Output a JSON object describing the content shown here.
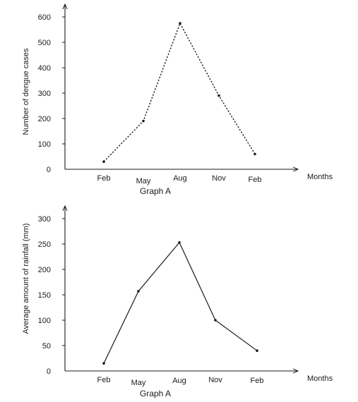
{
  "chart_data": [
    {
      "type": "line",
      "caption": "Graph A",
      "xlabel": "Months",
      "ylabel": "Number of dengue cases",
      "categories": [
        "Feb",
        "May",
        "Aug",
        "Nov",
        "Feb"
      ],
      "yticks": [
        0,
        100,
        200,
        300,
        400,
        500,
        600
      ],
      "ylim": [
        0,
        600
      ],
      "line_style": "dotted",
      "series": [
        {
          "values": [
            30,
            190,
            575,
            290,
            60
          ]
        }
      ]
    },
    {
      "type": "line",
      "caption": "Graph A",
      "xlabel": "Months",
      "ylabel": "Average amount of rainfall (mm)",
      "categories": [
        "Feb",
        "May",
        "Aug",
        "Nov",
        "Feb"
      ],
      "yticks": [
        0,
        50,
        100,
        150,
        200,
        250,
        300
      ],
      "ylim": [
        0,
        300
      ],
      "line_style": "solid",
      "series": [
        {
          "values": [
            15,
            157,
            253,
            100,
            40
          ]
        }
      ]
    }
  ]
}
